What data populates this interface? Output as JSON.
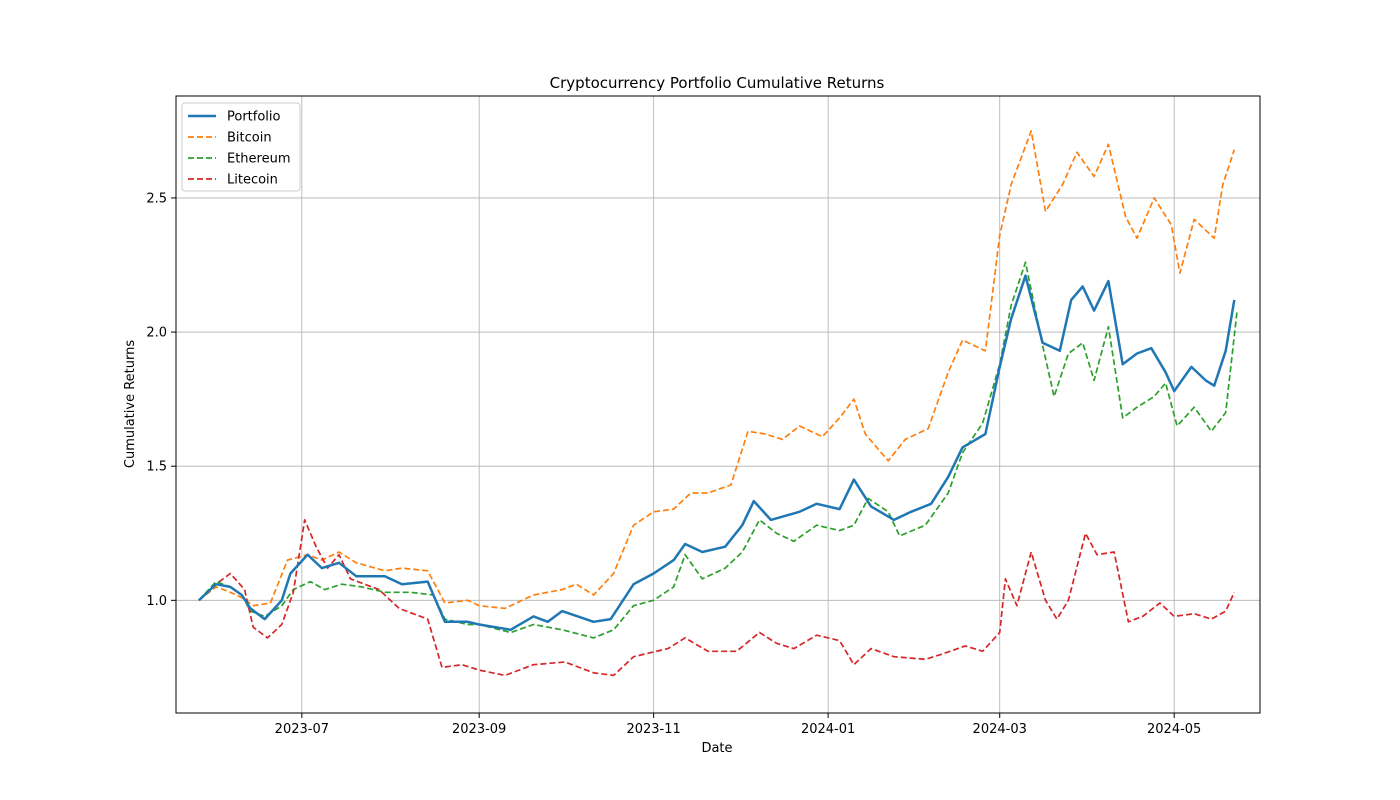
{
  "chart_data": {
    "type": "line",
    "title": "Cryptocurrency Portfolio Cumulative Returns",
    "xlabel": "Date",
    "ylabel": "Cumulative Returns",
    "xlim": [
      "2023-05-18",
      "2024-05-31"
    ],
    "ylim": [
      0.58,
      2.88
    ],
    "grid": true,
    "legend_position": "upper-left",
    "x_ticks": [
      {
        "date": "2023-07-01",
        "label": "2023-07"
      },
      {
        "date": "2023-09-01",
        "label": "2023-09"
      },
      {
        "date": "2023-11-01",
        "label": "2023-11"
      },
      {
        "date": "2024-01-01",
        "label": "2024-01"
      },
      {
        "date": "2024-03-01",
        "label": "2024-03"
      },
      {
        "date": "2024-05-01",
        "label": "2024-05"
      }
    ],
    "y_ticks": [
      {
        "value": 1.0,
        "label": "1.0"
      },
      {
        "value": 1.5,
        "label": "1.5"
      },
      {
        "value": 2.0,
        "label": "2.0"
      },
      {
        "value": 2.5,
        "label": "2.5"
      }
    ],
    "series": [
      {
        "name": "Portfolio",
        "color": "#1f77b4",
        "style": "solid",
        "points": [
          [
            "2023-05-26",
            1.0
          ],
          [
            "2023-06-01",
            1.06
          ],
          [
            "2023-06-06",
            1.05
          ],
          [
            "2023-06-10",
            1.02
          ],
          [
            "2023-06-13",
            0.97
          ],
          [
            "2023-06-18",
            0.93
          ],
          [
            "2023-06-24",
            1.0
          ],
          [
            "2023-06-27",
            1.1
          ],
          [
            "2023-07-03",
            1.17
          ],
          [
            "2023-07-08",
            1.12
          ],
          [
            "2023-07-14",
            1.14
          ],
          [
            "2023-07-20",
            1.09
          ],
          [
            "2023-07-30",
            1.09
          ],
          [
            "2023-08-05",
            1.06
          ],
          [
            "2023-08-14",
            1.07
          ],
          [
            "2023-08-20",
            0.92
          ],
          [
            "2023-08-28",
            0.92
          ],
          [
            "2023-09-01",
            0.91
          ],
          [
            "2023-09-12",
            0.89
          ],
          [
            "2023-09-20",
            0.94
          ],
          [
            "2023-09-25",
            0.92
          ],
          [
            "2023-09-30",
            0.96
          ],
          [
            "2023-10-11",
            0.92
          ],
          [
            "2023-10-17",
            0.93
          ],
          [
            "2023-10-25",
            1.06
          ],
          [
            "2023-11-01",
            1.1
          ],
          [
            "2023-11-08",
            1.15
          ],
          [
            "2023-11-12",
            1.21
          ],
          [
            "2023-11-18",
            1.18
          ],
          [
            "2023-11-26",
            1.2
          ],
          [
            "2023-12-02",
            1.28
          ],
          [
            "2023-12-06",
            1.37
          ],
          [
            "2023-12-12",
            1.3
          ],
          [
            "2023-12-22",
            1.33
          ],
          [
            "2023-12-28",
            1.36
          ],
          [
            "2024-01-05",
            1.34
          ],
          [
            "2024-01-10",
            1.45
          ],
          [
            "2024-01-16",
            1.35
          ],
          [
            "2024-01-24",
            1.3
          ],
          [
            "2024-01-30",
            1.33
          ],
          [
            "2024-02-06",
            1.36
          ],
          [
            "2024-02-12",
            1.46
          ],
          [
            "2024-02-17",
            1.57
          ],
          [
            "2024-02-25",
            1.62
          ],
          [
            "2024-03-01",
            1.87
          ],
          [
            "2024-03-05",
            2.05
          ],
          [
            "2024-03-10",
            2.21
          ],
          [
            "2024-03-16",
            1.96
          ],
          [
            "2024-03-22",
            1.93
          ],
          [
            "2024-03-26",
            2.12
          ],
          [
            "2024-03-30",
            2.17
          ],
          [
            "2024-04-03",
            2.08
          ],
          [
            "2024-04-08",
            2.19
          ],
          [
            "2024-04-13",
            1.88
          ],
          [
            "2024-04-18",
            1.92
          ],
          [
            "2024-04-23",
            1.94
          ],
          [
            "2024-04-28",
            1.85
          ],
          [
            "2024-05-01",
            1.78
          ],
          [
            "2024-05-07",
            1.87
          ],
          [
            "2024-05-12",
            1.82
          ],
          [
            "2024-05-15",
            1.8
          ],
          [
            "2024-05-19",
            1.93
          ],
          [
            "2024-05-22",
            2.12
          ]
        ]
      },
      {
        "name": "Bitcoin",
        "color": "#ff7f0e",
        "style": "dashed",
        "points": [
          [
            "2023-05-26",
            1.0
          ],
          [
            "2023-06-01",
            1.05
          ],
          [
            "2023-06-06",
            1.03
          ],
          [
            "2023-06-10",
            1.01
          ],
          [
            "2023-06-14",
            0.98
          ],
          [
            "2023-06-20",
            0.99
          ],
          [
            "2023-06-26",
            1.15
          ],
          [
            "2023-07-03",
            1.17
          ],
          [
            "2023-07-08",
            1.15
          ],
          [
            "2023-07-14",
            1.18
          ],
          [
            "2023-07-20",
            1.14
          ],
          [
            "2023-07-30",
            1.11
          ],
          [
            "2023-08-05",
            1.12
          ],
          [
            "2023-08-14",
            1.11
          ],
          [
            "2023-08-20",
            0.99
          ],
          [
            "2023-08-28",
            1.0
          ],
          [
            "2023-09-01",
            0.98
          ],
          [
            "2023-09-10",
            0.97
          ],
          [
            "2023-09-20",
            1.02
          ],
          [
            "2023-09-30",
            1.04
          ],
          [
            "2023-10-05",
            1.06
          ],
          [
            "2023-10-11",
            1.02
          ],
          [
            "2023-10-18",
            1.1
          ],
          [
            "2023-10-25",
            1.28
          ],
          [
            "2023-11-01",
            1.33
          ],
          [
            "2023-11-08",
            1.34
          ],
          [
            "2023-11-14",
            1.4
          ],
          [
            "2023-11-20",
            1.4
          ],
          [
            "2023-11-28",
            1.43
          ],
          [
            "2023-12-04",
            1.63
          ],
          [
            "2023-12-10",
            1.62
          ],
          [
            "2023-12-16",
            1.6
          ],
          [
            "2023-12-22",
            1.65
          ],
          [
            "2023-12-30",
            1.61
          ],
          [
            "2024-01-05",
            1.68
          ],
          [
            "2024-01-10",
            1.75
          ],
          [
            "2024-01-14",
            1.62
          ],
          [
            "2024-01-22",
            1.52
          ],
          [
            "2024-01-28",
            1.6
          ],
          [
            "2024-02-05",
            1.64
          ],
          [
            "2024-02-12",
            1.85
          ],
          [
            "2024-02-17",
            1.97
          ],
          [
            "2024-02-25",
            1.93
          ],
          [
            "2024-03-01",
            2.36
          ],
          [
            "2024-03-05",
            2.55
          ],
          [
            "2024-03-12",
            2.75
          ],
          [
            "2024-03-17",
            2.45
          ],
          [
            "2024-03-23",
            2.55
          ],
          [
            "2024-03-28",
            2.67
          ],
          [
            "2024-04-03",
            2.58
          ],
          [
            "2024-04-08",
            2.7
          ],
          [
            "2024-04-14",
            2.43
          ],
          [
            "2024-04-18",
            2.35
          ],
          [
            "2024-04-24",
            2.5
          ],
          [
            "2024-04-30",
            2.4
          ],
          [
            "2024-05-03",
            2.22
          ],
          [
            "2024-05-08",
            2.42
          ],
          [
            "2024-05-15",
            2.35
          ],
          [
            "2024-05-18",
            2.55
          ],
          [
            "2024-05-22",
            2.68
          ]
        ]
      },
      {
        "name": "Ethereum",
        "color": "#2ca02c",
        "style": "dashed",
        "points": [
          [
            "2023-05-26",
            1.0
          ],
          [
            "2023-06-01",
            1.07
          ],
          [
            "2023-06-06",
            1.05
          ],
          [
            "2023-06-10",
            1.02
          ],
          [
            "2023-06-13",
            0.96
          ],
          [
            "2023-06-18",
            0.94
          ],
          [
            "2023-06-24",
            0.98
          ],
          [
            "2023-06-28",
            1.04
          ],
          [
            "2023-07-04",
            1.07
          ],
          [
            "2023-07-09",
            1.04
          ],
          [
            "2023-07-15",
            1.06
          ],
          [
            "2023-07-22",
            1.05
          ],
          [
            "2023-07-30",
            1.03
          ],
          [
            "2023-08-08",
            1.03
          ],
          [
            "2023-08-16",
            1.02
          ],
          [
            "2023-08-20",
            0.93
          ],
          [
            "2023-08-28",
            0.91
          ],
          [
            "2023-09-01",
            0.91
          ],
          [
            "2023-09-12",
            0.88
          ],
          [
            "2023-09-20",
            0.91
          ],
          [
            "2023-09-30",
            0.89
          ],
          [
            "2023-10-11",
            0.86
          ],
          [
            "2023-10-18",
            0.89
          ],
          [
            "2023-10-25",
            0.98
          ],
          [
            "2023-11-01",
            1.0
          ],
          [
            "2023-11-08",
            1.05
          ],
          [
            "2023-11-12",
            1.17
          ],
          [
            "2023-11-18",
            1.08
          ],
          [
            "2023-11-26",
            1.12
          ],
          [
            "2023-12-02",
            1.18
          ],
          [
            "2023-12-08",
            1.3
          ],
          [
            "2023-12-14",
            1.25
          ],
          [
            "2023-12-20",
            1.22
          ],
          [
            "2023-12-28",
            1.28
          ],
          [
            "2024-01-05",
            1.26
          ],
          [
            "2024-01-10",
            1.28
          ],
          [
            "2024-01-15",
            1.38
          ],
          [
            "2024-01-22",
            1.33
          ],
          [
            "2024-01-26",
            1.24
          ],
          [
            "2024-02-04",
            1.28
          ],
          [
            "2024-02-12",
            1.4
          ],
          [
            "2024-02-17",
            1.55
          ],
          [
            "2024-02-24",
            1.66
          ],
          [
            "2024-03-01",
            1.88
          ],
          [
            "2024-03-05",
            2.1
          ],
          [
            "2024-03-10",
            2.26
          ],
          [
            "2024-03-16",
            1.95
          ],
          [
            "2024-03-20",
            1.76
          ],
          [
            "2024-03-25",
            1.92
          ],
          [
            "2024-03-30",
            1.96
          ],
          [
            "2024-04-03",
            1.82
          ],
          [
            "2024-04-08",
            2.02
          ],
          [
            "2024-04-13",
            1.68
          ],
          [
            "2024-04-18",
            1.72
          ],
          [
            "2024-04-24",
            1.76
          ],
          [
            "2024-04-28",
            1.81
          ],
          [
            "2024-05-02",
            1.65
          ],
          [
            "2024-05-08",
            1.72
          ],
          [
            "2024-05-14",
            1.63
          ],
          [
            "2024-05-19",
            1.7
          ],
          [
            "2024-05-23",
            2.08
          ]
        ]
      },
      {
        "name": "Litecoin",
        "color": "#d62728",
        "style": "dashed",
        "points": [
          [
            "2023-05-26",
            1.0
          ],
          [
            "2023-06-01",
            1.06
          ],
          [
            "2023-06-06",
            1.1
          ],
          [
            "2023-06-11",
            1.04
          ],
          [
            "2023-06-14",
            0.9
          ],
          [
            "2023-06-19",
            0.86
          ],
          [
            "2023-06-24",
            0.91
          ],
          [
            "2023-06-28",
            1.03
          ],
          [
            "2023-07-02",
            1.3
          ],
          [
            "2023-07-06",
            1.2
          ],
          [
            "2023-07-10",
            1.12
          ],
          [
            "2023-07-14",
            1.17
          ],
          [
            "2023-07-18",
            1.08
          ],
          [
            "2023-07-28",
            1.04
          ],
          [
            "2023-08-04",
            0.97
          ],
          [
            "2023-08-14",
            0.93
          ],
          [
            "2023-08-19",
            0.75
          ],
          [
            "2023-08-26",
            0.76
          ],
          [
            "2023-09-01",
            0.74
          ],
          [
            "2023-09-10",
            0.72
          ],
          [
            "2023-09-20",
            0.76
          ],
          [
            "2023-10-01",
            0.77
          ],
          [
            "2023-10-11",
            0.73
          ],
          [
            "2023-10-18",
            0.72
          ],
          [
            "2023-10-25",
            0.79
          ],
          [
            "2023-11-06",
            0.82
          ],
          [
            "2023-11-12",
            0.86
          ],
          [
            "2023-11-20",
            0.81
          ],
          [
            "2023-11-30",
            0.81
          ],
          [
            "2023-12-08",
            0.88
          ],
          [
            "2023-12-14",
            0.84
          ],
          [
            "2023-12-20",
            0.82
          ],
          [
            "2023-12-28",
            0.87
          ],
          [
            "2024-01-05",
            0.85
          ],
          [
            "2024-01-10",
            0.76
          ],
          [
            "2024-01-16",
            0.82
          ],
          [
            "2024-01-24",
            0.79
          ],
          [
            "2024-02-04",
            0.78
          ],
          [
            "2024-02-10",
            0.8
          ],
          [
            "2024-02-18",
            0.83
          ],
          [
            "2024-02-24",
            0.81
          ],
          [
            "2024-03-01",
            0.88
          ],
          [
            "2024-03-03",
            1.08
          ],
          [
            "2024-03-07",
            0.98
          ],
          [
            "2024-03-12",
            1.18
          ],
          [
            "2024-03-17",
            1.0
          ],
          [
            "2024-03-21",
            0.93
          ],
          [
            "2024-03-25",
            1.0
          ],
          [
            "2024-03-31",
            1.25
          ],
          [
            "2024-04-04",
            1.17
          ],
          [
            "2024-04-10",
            1.18
          ],
          [
            "2024-04-15",
            0.92
          ],
          [
            "2024-04-20",
            0.94
          ],
          [
            "2024-04-26",
            0.99
          ],
          [
            "2024-05-01",
            0.94
          ],
          [
            "2024-05-08",
            0.95
          ],
          [
            "2024-05-14",
            0.93
          ],
          [
            "2024-05-19",
            0.96
          ],
          [
            "2024-05-22",
            1.03
          ]
        ]
      }
    ]
  }
}
